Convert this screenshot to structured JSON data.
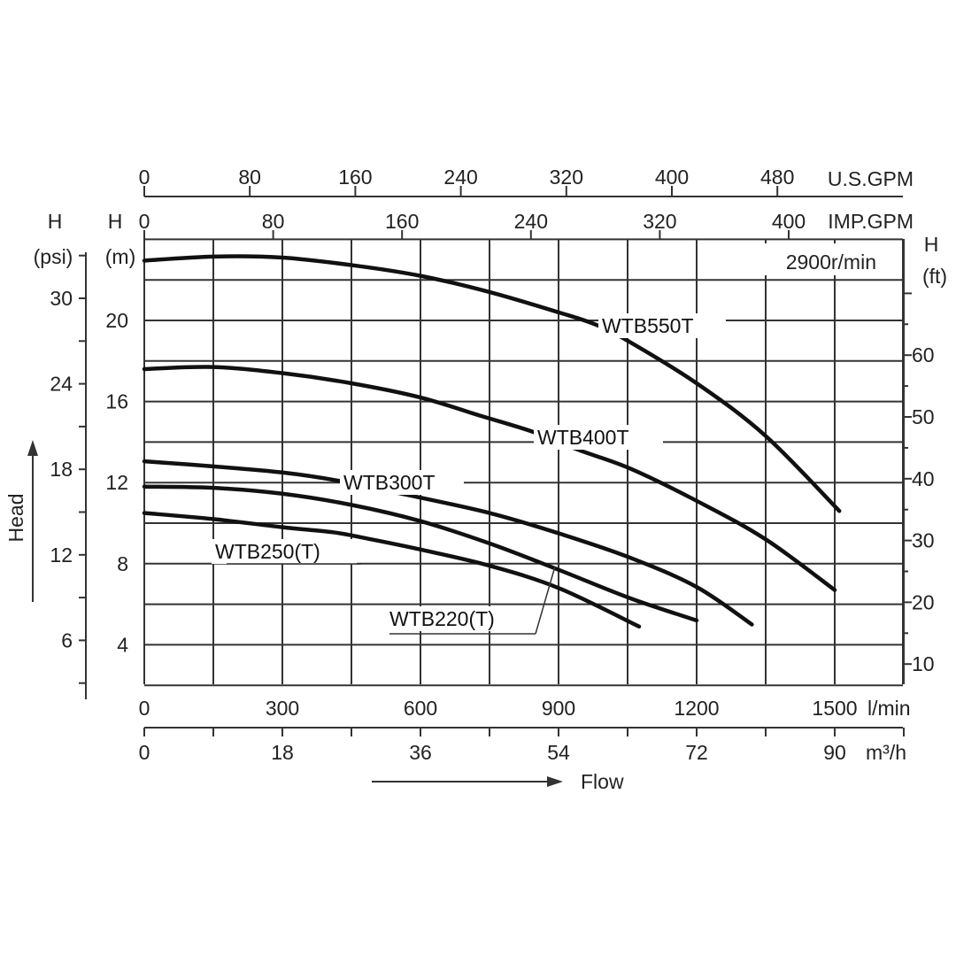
{
  "chart_data": {
    "type": "line",
    "speed_note": "2900r/min",
    "x_axis": {
      "unit": "l/min",
      "xlim": [
        0,
        1650
      ],
      "tick_labels": [
        "0",
        "300",
        "600",
        "900",
        "1200",
        "1500"
      ],
      "ticks": [
        0,
        300,
        600,
        900,
        1200,
        1500
      ],
      "label": "Flow"
    },
    "x_axis_m3h": {
      "unit": "m³/h",
      "tick_labels": [
        "0",
        "18",
        "36",
        "54",
        "72",
        "90"
      ],
      "ticks": [
        0,
        18,
        36,
        54,
        72,
        90
      ]
    },
    "x_axis_usgpm": {
      "unit": "U.S.GPM",
      "tick_labels": [
        "0",
        "80",
        "160",
        "240",
        "320",
        "400",
        "480"
      ],
      "ticks": [
        0,
        80,
        160,
        240,
        320,
        400,
        480
      ]
    },
    "x_axis_impgpm": {
      "unit": "IMP.GPM",
      "tick_labels": [
        "0",
        "80",
        "160",
        "240",
        "320",
        "400"
      ],
      "ticks": [
        0,
        80,
        160,
        240,
        320,
        400
      ]
    },
    "y_axis": {
      "unit_top": "H",
      "unit": "(m)",
      "ylim": [
        2,
        24
      ],
      "tick_labels": [
        "4",
        "8",
        "12",
        "16",
        "20"
      ],
      "ticks": [
        4,
        8,
        12,
        16,
        20
      ],
      "label": "Head"
    },
    "y_axis_psi": {
      "unit_top": "H",
      "unit": "(psi)",
      "tick_labels": [
        "6",
        "12",
        "18",
        "24",
        "30"
      ],
      "ticks": [
        6,
        12,
        18,
        24,
        30
      ]
    },
    "y_axis_ft": {
      "unit_top": "H",
      "unit": "(ft)",
      "tick_labels": [
        "10",
        "20",
        "30",
        "40",
        "50",
        "60"
      ],
      "ticks": [
        10,
        20,
        30,
        40,
        50,
        60
      ]
    },
    "grid": true,
    "series": [
      {
        "name": "WTB550T",
        "points": [
          [
            0,
            22.95
          ],
          [
            150,
            23.15
          ],
          [
            300,
            23.1
          ],
          [
            460,
            22.7
          ],
          [
            600,
            22.2
          ],
          [
            750,
            21.4
          ],
          [
            900,
            20.4
          ],
          [
            980,
            19.8
          ],
          [
            1050,
            19.0
          ],
          [
            1200,
            16.9
          ],
          [
            1350,
            14.3
          ],
          [
            1510,
            10.6
          ]
        ]
      },
      {
        "name": "WTB400T",
        "points": [
          [
            0,
            17.6
          ],
          [
            150,
            17.7
          ],
          [
            300,
            17.4
          ],
          [
            450,
            16.9
          ],
          [
            600,
            16.2
          ],
          [
            730,
            15.3
          ],
          [
            845,
            14.5
          ],
          [
            945,
            13.6
          ],
          [
            1055,
            12.7
          ],
          [
            1200,
            11.1
          ],
          [
            1350,
            9.2
          ],
          [
            1500,
            6.7
          ]
        ]
      },
      {
        "name": "WTB300T",
        "points": [
          [
            0,
            13.05
          ],
          [
            150,
            12.8
          ],
          [
            300,
            12.5
          ],
          [
            420,
            12.1
          ],
          [
            570,
            11.4
          ],
          [
            750,
            10.5
          ],
          [
            900,
            9.5
          ],
          [
            1055,
            8.3
          ],
          [
            1200,
            6.85
          ],
          [
            1320,
            5.0
          ]
        ]
      },
      {
        "name": "WTB250(T)",
        "points": [
          [
            0,
            11.8
          ],
          [
            150,
            11.74
          ],
          [
            300,
            11.45
          ],
          [
            450,
            10.9
          ],
          [
            600,
            10.1
          ],
          [
            750,
            9.0
          ],
          [
            900,
            7.7
          ],
          [
            1055,
            6.3
          ],
          [
            1200,
            5.2
          ]
        ]
      },
      {
        "name": "WTB220(T)",
        "points": [
          [
            0,
            10.5
          ],
          [
            150,
            10.2
          ],
          [
            300,
            9.8
          ],
          [
            410,
            9.55
          ],
          [
            480,
            9.26
          ],
          [
            600,
            8.7
          ],
          [
            750,
            7.9
          ],
          [
            900,
            6.8
          ],
          [
            1075,
            4.9
          ]
        ]
      }
    ]
  }
}
